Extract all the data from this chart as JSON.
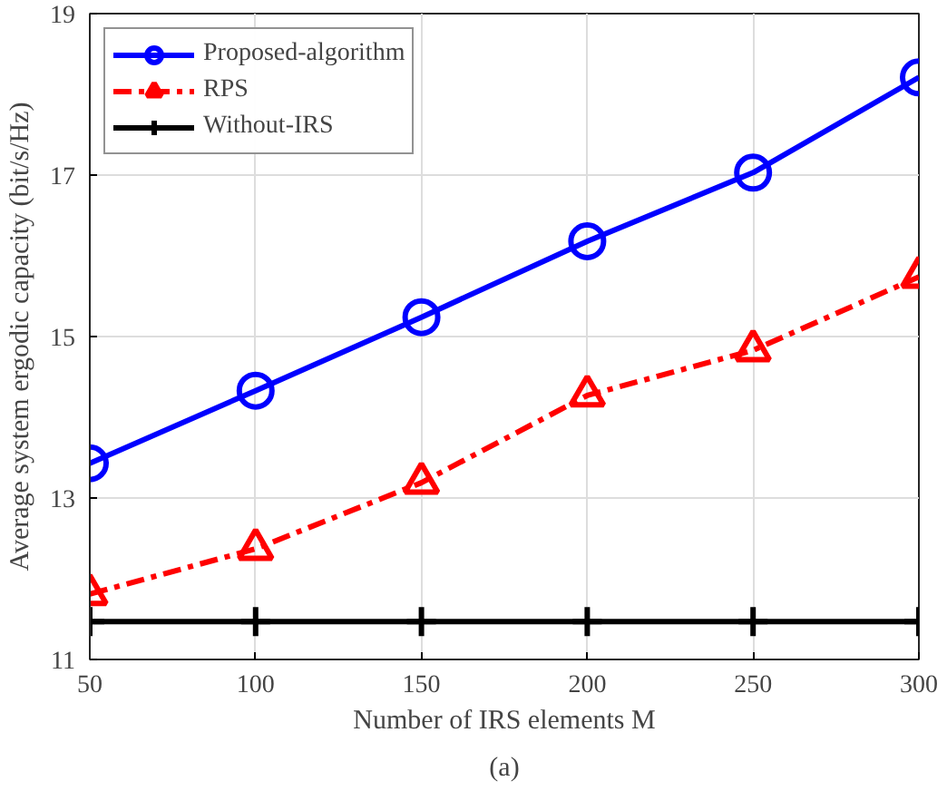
{
  "chart_data": {
    "type": "line",
    "xlabel": "Number of IRS elements M",
    "ylabel": "Average system ergodic capacity (bit/s/Hz)",
    "annotations": [
      "(a)"
    ],
    "x": [
      50,
      100,
      150,
      200,
      250,
      300
    ],
    "series": [
      {
        "name": "Proposed-algorithm",
        "color": "#0000ff",
        "marker": "circle",
        "line_style": "solid",
        "values": [
          13.43,
          14.33,
          15.24,
          16.18,
          17.03,
          18.21
        ]
      },
      {
        "name": "RPS",
        "color": "#ff0000",
        "marker": "triangle",
        "line_style": "dashed",
        "values": [
          11.81,
          12.37,
          13.19,
          14.27,
          14.83,
          15.74
        ]
      },
      {
        "name": "Without-IRS",
        "color": "#000000",
        "marker": "cross",
        "line_style": "solid",
        "values": [
          11.47,
          11.47,
          11.47,
          11.47,
          11.47,
          11.47
        ]
      }
    ],
    "xlim": [
      50,
      300
    ],
    "xticks": [
      50,
      100,
      150,
      200,
      250,
      300
    ],
    "ylim": [
      11,
      19
    ],
    "yticks": [
      11,
      13,
      15,
      17,
      19
    ],
    "grid": true,
    "legend": "top left"
  }
}
